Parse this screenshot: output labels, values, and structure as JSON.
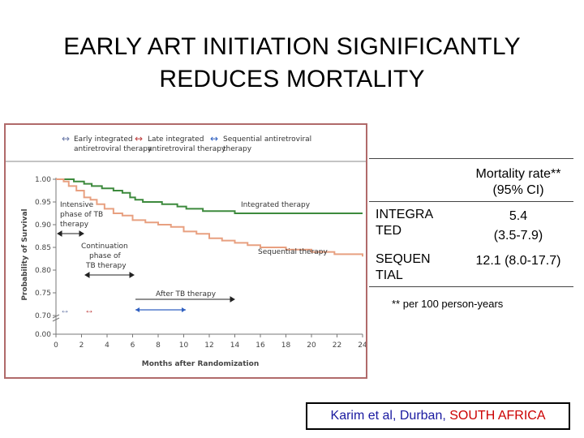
{
  "slide": {
    "title_line1": "EARLY ART INITIATION SIGNIFICANTLY",
    "title_line2": "REDUCES MORTALITY"
  },
  "table": {
    "header_line1": "Mortality rate**",
    "header_line2": "(95% CI)",
    "rows": [
      {
        "label_line1": "INTEGRA",
        "label_line2": "TED",
        "value_line1": "5.4",
        "value_line2": "(3.5-7.9)"
      },
      {
        "label_line1": "SEQUEN",
        "label_line2": "TIAL",
        "value_line1": "12.1 (8.0-17.7)",
        "value_line2": ""
      }
    ],
    "footnote": "**  per 100 person-years"
  },
  "source": {
    "prefix": "Karim et al, Durban, ",
    "highlight": "SOUTH AFRICA"
  },
  "chart_data": {
    "type": "line",
    "xlabel": "Months after Randomization",
    "ylabel": "Probability of Survival",
    "xlim": [
      0,
      24
    ],
    "x_ticks": [
      0,
      2,
      4,
      6,
      8,
      10,
      12,
      14,
      16,
      18,
      20,
      22,
      24
    ],
    "y_ticks": [
      "1.00",
      "0.95",
      "0.90",
      "0.85",
      "0.80",
      "0.75",
      "0.70",
      "0.00"
    ],
    "y_axis_break": true,
    "legend_top": [
      {
        "text_line1": "Early integrated",
        "text_line2": "antiretroviral therapy",
        "arrow_color": "#6b7aa8"
      },
      {
        "text_line1": "Late integrated",
        "text_line2": "antiretroviral therapy",
        "arrow_color": "#c04040"
      },
      {
        "text_line1": "Sequential antiretroviral",
        "text_line2": "therapy",
        "arrow_color": "#3060c0"
      }
    ],
    "series": [
      {
        "name": "Integrated therapy",
        "color": "#3d8a3d",
        "points": [
          [
            0,
            1.0
          ],
          [
            0.8,
            1.0
          ],
          [
            1.4,
            0.995
          ],
          [
            2.2,
            0.99
          ],
          [
            2.8,
            0.985
          ],
          [
            3.6,
            0.98
          ],
          [
            4.5,
            0.975
          ],
          [
            5.2,
            0.97
          ],
          [
            5.8,
            0.96
          ],
          [
            6.2,
            0.955
          ],
          [
            6.8,
            0.95
          ],
          [
            8.3,
            0.945
          ],
          [
            9.5,
            0.94
          ],
          [
            10.2,
            0.935
          ],
          [
            11.5,
            0.93
          ],
          [
            12.5,
            0.93
          ],
          [
            13.2,
            0.93
          ],
          [
            14,
            0.925
          ],
          [
            24,
            0.925
          ]
        ]
      },
      {
        "name": "Sequential therapy",
        "color": "#e8a080",
        "points": [
          [
            0,
            1.0
          ],
          [
            0.6,
            0.995
          ],
          [
            1.0,
            0.985
          ],
          [
            1.6,
            0.975
          ],
          [
            2.2,
            0.96
          ],
          [
            2.7,
            0.955
          ],
          [
            3.2,
            0.945
          ],
          [
            3.8,
            0.935
          ],
          [
            4.5,
            0.925
          ],
          [
            5.2,
            0.92
          ],
          [
            6.0,
            0.91
          ],
          [
            7.0,
            0.905
          ],
          [
            8.0,
            0.9
          ],
          [
            9.0,
            0.895
          ],
          [
            10.0,
            0.885
          ],
          [
            11.0,
            0.88
          ],
          [
            12.0,
            0.87
          ],
          [
            13.0,
            0.865
          ],
          [
            14.0,
            0.86
          ],
          [
            15.0,
            0.855
          ],
          [
            16.0,
            0.85
          ],
          [
            18.0,
            0.845
          ],
          [
            20.0,
            0.84
          ],
          [
            21.8,
            0.835
          ],
          [
            24,
            0.83
          ]
        ]
      }
    ],
    "annotations": [
      {
        "text_line1": "Intensive",
        "text_line2": "phase of TB",
        "text_line3": "therapy"
      },
      {
        "text_line1": "Continuation",
        "text_line2": "phase of",
        "text_line3": "TB therapy"
      },
      {
        "text_line1": "After TB therapy",
        "text_line2": "",
        "text_line3": ""
      }
    ]
  }
}
